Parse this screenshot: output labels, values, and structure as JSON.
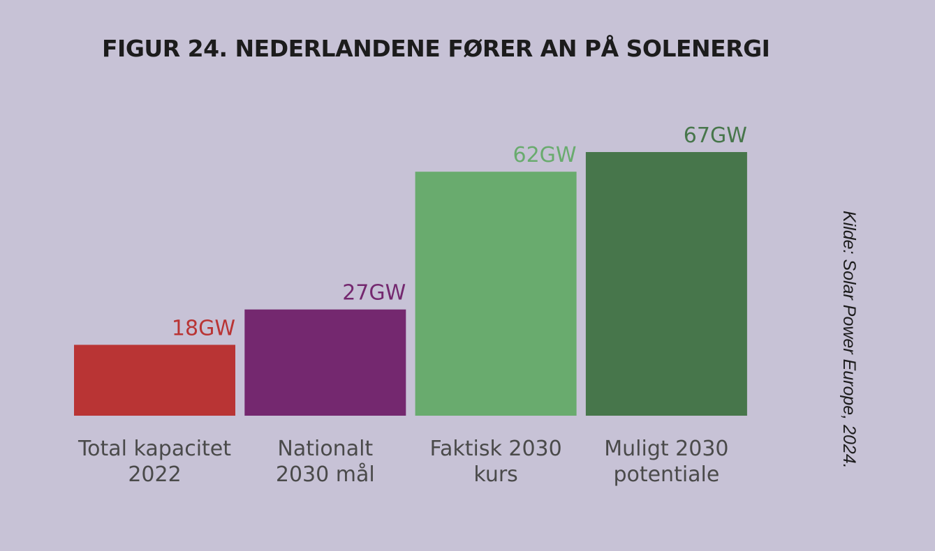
{
  "title": "FIGUR 24. NEDERLANDENE FØRER AN PÅ SOLENERGI",
  "source": "Kilde: Solar Power Europe, 2024.",
  "chart_data": {
    "type": "bar",
    "title": "FIGUR 24. NEDERLANDENE FØRER AN PÅ SOLENERGI",
    "categories": [
      [
        "Total kapacitet",
        "2022"
      ],
      [
        "Nationalt",
        "2030 mål"
      ],
      [
        "Faktisk 2030",
        "kurs"
      ],
      [
        "Muligt 2030",
        "potentiale"
      ]
    ],
    "values": [
      18,
      27,
      62,
      67
    ],
    "value_labels": [
      "18GW",
      "27GW",
      "62GW",
      "67GW"
    ],
    "unit": "GW",
    "colors": [
      "#b93434",
      "#74286f",
      "#69ab6e",
      "#47764b"
    ],
    "label_colors": [
      "#b93434",
      "#74286f",
      "#69ab6e",
      "#47764b"
    ],
    "category_label_color": "#4a4a4a",
    "ylim": [
      0,
      67
    ],
    "grid": false,
    "legend": "none"
  }
}
